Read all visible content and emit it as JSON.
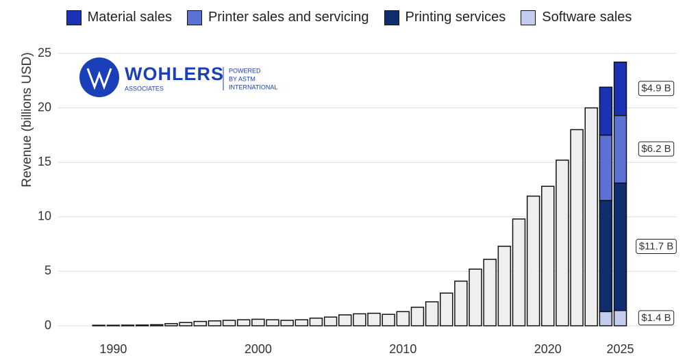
{
  "chart_data": {
    "type": "bar",
    "y_label": "Revenue (billions USD)",
    "x": [
      1989,
      1990,
      1991,
      1992,
      1993,
      1994,
      1995,
      1996,
      1997,
      1998,
      1999,
      2000,
      2001,
      2002,
      2003,
      2004,
      2005,
      2006,
      2007,
      2008,
      2009,
      2010,
      2011,
      2012,
      2013,
      2014,
      2015,
      2016,
      2017,
      2018,
      2019,
      2020,
      2021,
      2022,
      2023,
      2024,
      2025
    ],
    "values": [
      0.05,
      0.05,
      0.06,
      0.07,
      0.1,
      0.2,
      0.3,
      0.4,
      0.45,
      0.5,
      0.55,
      0.6,
      0.55,
      0.5,
      0.55,
      0.7,
      0.8,
      1.0,
      1.1,
      1.15,
      1.05,
      1.3,
      1.7,
      2.2,
      3.0,
      4.1,
      5.2,
      6.1,
      7.3,
      9.8,
      11.9,
      12.8,
      15.2,
      18.0,
      20.0,
      null,
      null
    ],
    "color": "#efefef",
    "series": [
      {
        "name": "Software sales",
        "color": "#c5cdef",
        "values": [
          null,
          null,
          null,
          null,
          null,
          null,
          null,
          null,
          null,
          null,
          null,
          null,
          null,
          null,
          null,
          null,
          null,
          null,
          null,
          null,
          null,
          null,
          null,
          null,
          null,
          null,
          null,
          null,
          null,
          null,
          null,
          null,
          null,
          null,
          null,
          1.3,
          1.4
        ],
        "value_labels": [
          null,
          null,
          null,
          null,
          null,
          null,
          null,
          null,
          null,
          null,
          null,
          null,
          null,
          null,
          null,
          null,
          null,
          null,
          null,
          null,
          null,
          null,
          null,
          null,
          null,
          null,
          null,
          null,
          null,
          null,
          null,
          null,
          null,
          null,
          null,
          null,
          "$1.4 B"
        ]
      },
      {
        "name": "Printing services",
        "color": "#0f2e6e",
        "values": [
          null,
          null,
          null,
          null,
          null,
          null,
          null,
          null,
          null,
          null,
          null,
          null,
          null,
          null,
          null,
          null,
          null,
          null,
          null,
          null,
          null,
          null,
          null,
          null,
          null,
          null,
          null,
          null,
          null,
          null,
          null,
          null,
          null,
          null,
          null,
          10.2,
          11.7
        ],
        "value_labels": [
          null,
          null,
          null,
          null,
          null,
          null,
          null,
          null,
          null,
          null,
          null,
          null,
          null,
          null,
          null,
          null,
          null,
          null,
          null,
          null,
          null,
          null,
          null,
          null,
          null,
          null,
          null,
          null,
          null,
          null,
          null,
          null,
          null,
          null,
          null,
          null,
          "$11.7 B"
        ]
      },
      {
        "name": "Printer sales and servicing",
        "color": "#5b72d4",
        "values": [
          null,
          null,
          null,
          null,
          null,
          null,
          null,
          null,
          null,
          null,
          null,
          null,
          null,
          null,
          null,
          null,
          null,
          null,
          null,
          null,
          null,
          null,
          null,
          null,
          null,
          null,
          null,
          null,
          null,
          null,
          null,
          null,
          null,
          null,
          null,
          6.0,
          6.2
        ],
        "value_labels": [
          null,
          null,
          null,
          null,
          null,
          null,
          null,
          null,
          null,
          null,
          null,
          null,
          null,
          null,
          null,
          null,
          null,
          null,
          null,
          null,
          null,
          null,
          null,
          null,
          null,
          null,
          null,
          null,
          null,
          null,
          null,
          null,
          null,
          null,
          null,
          null,
          "$6.2 B"
        ]
      },
      {
        "name": "Material sales",
        "color": "#1a33b5",
        "values": [
          null,
          null,
          null,
          null,
          null,
          null,
          null,
          null,
          null,
          null,
          null,
          null,
          null,
          null,
          null,
          null,
          null,
          null,
          null,
          null,
          null,
          null,
          null,
          null,
          null,
          null,
          null,
          null,
          null,
          null,
          null,
          null,
          null,
          null,
          null,
          4.4,
          4.9
        ],
        "value_labels": [
          null,
          null,
          null,
          null,
          null,
          null,
          null,
          null,
          null,
          null,
          null,
          null,
          null,
          null,
          null,
          null,
          null,
          null,
          null,
          null,
          null,
          null,
          null,
          null,
          null,
          null,
          null,
          null,
          null,
          null,
          null,
          null,
          null,
          null,
          null,
          null,
          "$4.9 B"
        ]
      }
    ],
    "xlim": [
      1986.2,
      2028.9
    ],
    "xticks": [
      1990,
      2000,
      2010,
      2020,
      2025
    ],
    "ylim": [
      0,
      25
    ],
    "yticks": [
      0,
      5,
      10,
      15,
      20,
      25
    ],
    "grid": true
  },
  "logo": {
    "name": "WOHLERS",
    "sub": "ASSOCIATES",
    "tag": [
      "POWERED",
      "BY ASTM",
      "INTERNATIONAL"
    ]
  }
}
